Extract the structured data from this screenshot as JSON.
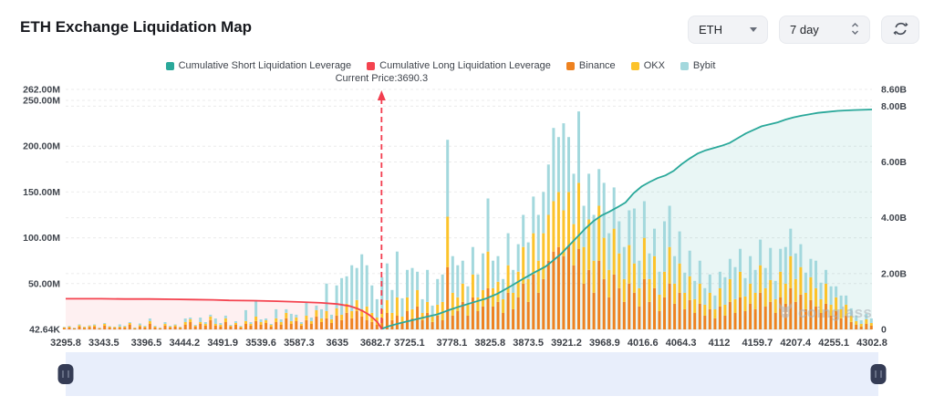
{
  "header": {
    "title": "ETH Exchange Liquidation Map"
  },
  "controls": {
    "symbol": "ETH",
    "period": "7 day",
    "icons": {
      "chevron_down": "caret-down",
      "stepper": "up-down-chevrons",
      "refresh": "circular-arrows"
    }
  },
  "watermark": {
    "text": "coinglass"
  },
  "slider": {
    "track_color": "#e8eefb",
    "handle_color": "#353c55",
    "grip_icon": "drag-grip"
  },
  "chart_data": {
    "type": "bar",
    "title": "ETH Exchange Liquidation Map",
    "subtitle": "",
    "grid": true,
    "legend_position": "top-center",
    "current_price": 3690.3,
    "current_price_label": "Current Price:3690.3",
    "x_axis": {
      "min": 3295.8,
      "max": 4302.8,
      "tick_labels": [
        "3295.8",
        "3343.5",
        "3396.5",
        "3444.2",
        "3491.9",
        "3539.6",
        "3587.3",
        "3635",
        "3682.7",
        "3725.1",
        "3778.1",
        "3825.8",
        "3873.5",
        "3921.2",
        "3968.9",
        "4016.6",
        "4064.3",
        "4112",
        "4159.7",
        "4207.4",
        "4255.1",
        "4302.8"
      ]
    },
    "left_axis": {
      "unit": "M",
      "max": 262,
      "min": 0.04264,
      "ticks": [
        {
          "label": "262.00M",
          "value": 262
        },
        {
          "label": "250.00M",
          "value": 250
        },
        {
          "label": "200.00M",
          "value": 200
        },
        {
          "label": "150.00M",
          "value": 150
        },
        {
          "label": "100.00M",
          "value": 100
        },
        {
          "label": "50.00M",
          "value": 50
        },
        {
          "label": "42.64K",
          "value": 0.04264
        }
      ]
    },
    "right_axis": {
      "unit": "B",
      "max": 8.6,
      "min": 0,
      "ticks": [
        {
          "label": "8.60B",
          "value": 8.6
        },
        {
          "label": "8.00B",
          "value": 8
        },
        {
          "label": "6.00B",
          "value": 6
        },
        {
          "label": "4.00B",
          "value": 4
        },
        {
          "label": "2.00B",
          "value": 2
        },
        {
          "label": "0",
          "value": 0
        }
      ]
    },
    "legend": [
      {
        "label": "Cumulative Short Liquidation Leverage",
        "color": "#2aa89a",
        "type": "line"
      },
      {
        "label": "Cumulative Long Liquidation Leverage",
        "color": "#f4434f",
        "type": "line"
      },
      {
        "label": "Binance",
        "color": "#ee8220",
        "type": "bar"
      },
      {
        "label": "OKX",
        "color": "#fcc32b",
        "type": "bar"
      },
      {
        "label": "Bybit",
        "color": "#a3d8dd",
        "type": "bar"
      }
    ],
    "price_line_color": "#f23d4e",
    "area_fill_short": "rgba(42,168,154,0.10)",
    "area_fill_long": "rgba(244,67,79,0.08)",
    "bars": {
      "unit": "M",
      "price_start": 3294,
      "price_step": 6.3,
      "series_order": [
        "Binance",
        "OKX",
        "Bybit"
      ],
      "values": [
        [
          1.5,
          0.8,
          0.5
        ],
        [
          2,
          1,
          0.8
        ],
        [
          1,
          0.5,
          0.4
        ],
        [
          3,
          1.5,
          1
        ],
        [
          1.5,
          1,
          0.5
        ],
        [
          2.5,
          1.2,
          0.8
        ],
        [
          3,
          1.5,
          1
        ],
        [
          1.2,
          0.6,
          0.4
        ],
        [
          4,
          2,
          1
        ],
        [
          2,
          1,
          0.6
        ],
        [
          1.5,
          1,
          0.5
        ],
        [
          2,
          1,
          2.5
        ],
        [
          2,
          1,
          1
        ],
        [
          5,
          2,
          1
        ],
        [
          1,
          0.8,
          0.4
        ],
        [
          3,
          1.5,
          2
        ],
        [
          2,
          1,
          1
        ],
        [
          6,
          3,
          3
        ],
        [
          2,
          1,
          1
        ],
        [
          1.2,
          0.6,
          0.4
        ],
        [
          4,
          2,
          2
        ],
        [
          2,
          1,
          1
        ],
        [
          3,
          1.5,
          1
        ],
        [
          1.5,
          1,
          0.5
        ],
        [
          5,
          3,
          4
        ],
        [
          8,
          3,
          2
        ],
        [
          3,
          1,
          1
        ],
        [
          6,
          2,
          5
        ],
        [
          4,
          2,
          2
        ],
        [
          10,
          4,
          2
        ],
        [
          4,
          2,
          6
        ],
        [
          3,
          2,
          2
        ],
        [
          8,
          4,
          3
        ],
        [
          3,
          1,
          1
        ],
        [
          5,
          2,
          2
        ],
        [
          2,
          1,
          1
        ],
        [
          6,
          3,
          12
        ],
        [
          4,
          2,
          2
        ],
        [
          9,
          5,
          18
        ],
        [
          5,
          3,
          3
        ],
        [
          7,
          3,
          2
        ],
        [
          3,
          2,
          1
        ],
        [
          8,
          4,
          10
        ],
        [
          5,
          3,
          3
        ],
        [
          12,
          6,
          4
        ],
        [
          6,
          3,
          8
        ],
        [
          9,
          4,
          3
        ],
        [
          4,
          2,
          2
        ],
        [
          10,
          5,
          15
        ],
        [
          6,
          3,
          4
        ],
        [
          14,
          7,
          5
        ],
        [
          8,
          4,
          10
        ],
        [
          12,
          8,
          30
        ],
        [
          7,
          4,
          5
        ],
        [
          15,
          8,
          25
        ],
        [
          10,
          6,
          40
        ],
        [
          18,
          10,
          30
        ],
        [
          12,
          8,
          50
        ],
        [
          20,
          12,
          35
        ],
        [
          14,
          8,
          60
        ],
        [
          10,
          15,
          45
        ],
        [
          8,
          10,
          30
        ],
        [
          5,
          8,
          20
        ],
        [
          12,
          10,
          35
        ],
        [
          18,
          14,
          40
        ],
        [
          10,
          8,
          25
        ],
        [
          15,
          20,
          50
        ],
        [
          8,
          6,
          20
        ],
        [
          20,
          15,
          30
        ],
        [
          12,
          10,
          45
        ],
        [
          25,
          18,
          20
        ],
        [
          10,
          8,
          15
        ],
        [
          18,
          12,
          35
        ],
        [
          8,
          6,
          12
        ],
        [
          15,
          12,
          28
        ],
        [
          10,
          20,
          30
        ],
        [
          68,
          55,
          84
        ],
        [
          15,
          25,
          40
        ],
        [
          20,
          15,
          35
        ],
        [
          30,
          20,
          25
        ],
        [
          15,
          12,
          20
        ],
        [
          35,
          25,
          30
        ],
        [
          20,
          15,
          25
        ],
        [
          25,
          18,
          40
        ],
        [
          45,
          40,
          58
        ],
        [
          25,
          20,
          30
        ],
        [
          30,
          22,
          28
        ],
        [
          18,
          15,
          22
        ],
        [
          40,
          30,
          35
        ],
        [
          22,
          18,
          25
        ],
        [
          35,
          28,
          30
        ],
        [
          50,
          40,
          35
        ],
        [
          30,
          25,
          40
        ],
        [
          60,
          45,
          40
        ],
        [
          40,
          35,
          50
        ],
        [
          55,
          50,
          45
        ],
        [
          75,
          50,
          55
        ],
        [
          85,
          55,
          80
        ],
        [
          90,
          60,
          60
        ],
        [
          80,
          50,
          95
        ],
        [
          92,
          58,
          60
        ],
        [
          70,
          45,
          55
        ],
        [
          88,
          72,
          78
        ],
        [
          50,
          40,
          45
        ],
        [
          65,
          55,
          50
        ],
        [
          40,
          35,
          50
        ],
        [
          75,
          60,
          40
        ],
        [
          55,
          45,
          60
        ],
        [
          35,
          30,
          40
        ],
        [
          60,
          50,
          45
        ],
        [
          45,
          38,
          35
        ],
        [
          30,
          25,
          35
        ],
        [
          50,
          42,
          38
        ],
        [
          40,
          32,
          60
        ],
        [
          25,
          20,
          30
        ],
        [
          55,
          45,
          40
        ],
        [
          30,
          25,
          28
        ],
        [
          45,
          35,
          30
        ],
        [
          20,
          18,
          25
        ],
        [
          35,
          28,
          55
        ],
        [
          50,
          40,
          45
        ],
        [
          28,
          22,
          30
        ],
        [
          40,
          32,
          35
        ],
        [
          22,
          18,
          22
        ],
        [
          32,
          26,
          28
        ],
        [
          18,
          15,
          20
        ],
        [
          28,
          22,
          25
        ],
        [
          15,
          12,
          18
        ],
        [
          22,
          18,
          20
        ],
        [
          12,
          10,
          15
        ],
        [
          25,
          20,
          18
        ],
        [
          15,
          12,
          30
        ],
        [
          30,
          25,
          22
        ],
        [
          18,
          15,
          35
        ],
        [
          35,
          28,
          25
        ],
        [
          20,
          16,
          20
        ],
        [
          28,
          22,
          30
        ],
        [
          22,
          18,
          25
        ],
        [
          40,
          30,
          28
        ],
        [
          25,
          20,
          22
        ],
        [
          30,
          24,
          35
        ],
        [
          18,
          15,
          20
        ],
        [
          35,
          28,
          25
        ],
        [
          28,
          22,
          40
        ],
        [
          45,
          35,
          30
        ],
        [
          30,
          25,
          28
        ],
        [
          38,
          30,
          25
        ],
        [
          22,
          18,
          22
        ],
        [
          32,
          25,
          20
        ],
        [
          25,
          20,
          30
        ],
        [
          18,
          15,
          18
        ],
        [
          28,
          22,
          15
        ],
        [
          15,
          12,
          20
        ],
        [
          20,
          15,
          12
        ],
        [
          12,
          10,
          15
        ],
        [
          15,
          12,
          10
        ],
        [
          8,
          7,
          8
        ],
        [
          5,
          4,
          6
        ],
        [
          3,
          3,
          4
        ],
        [
          6,
          5,
          6
        ],
        [
          4,
          3,
          5
        ]
      ]
    },
    "cumulative_long": {
      "unit": "B",
      "points": [
        [
          3295.8,
          1.1
        ],
        [
          3340,
          1.1
        ],
        [
          3370,
          1.09
        ],
        [
          3400,
          1.09
        ],
        [
          3430,
          1.08
        ],
        [
          3455,
          1.07
        ],
        [
          3480,
          1.06
        ],
        [
          3500,
          1.04
        ],
        [
          3530,
          1.03
        ],
        [
          3560,
          1.01
        ],
        [
          3590,
          0.98
        ],
        [
          3615,
          0.95
        ],
        [
          3635,
          0.91
        ],
        [
          3650,
          0.84
        ],
        [
          3660,
          0.75
        ],
        [
          3668,
          0.64
        ],
        [
          3675,
          0.52
        ],
        [
          3680,
          0.4
        ],
        [
          3685,
          0.26
        ],
        [
          3688,
          0.13
        ],
        [
          3690.3,
          0.02
        ]
      ]
    },
    "cumulative_short": {
      "unit": "B",
      "points": [
        [
          3690.3,
          0.02
        ],
        [
          3700,
          0.12
        ],
        [
          3715,
          0.24
        ],
        [
          3730,
          0.34
        ],
        [
          3745,
          0.44
        ],
        [
          3760,
          0.54
        ],
        [
          3775,
          0.7
        ],
        [
          3790,
          0.84
        ],
        [
          3805,
          0.97
        ],
        [
          3820,
          1.1
        ],
        [
          3835,
          1.28
        ],
        [
          3850,
          1.52
        ],
        [
          3865,
          1.78
        ],
        [
          3880,
          2.02
        ],
        [
          3895,
          2.25
        ],
        [
          3905,
          2.48
        ],
        [
          3915,
          2.72
        ],
        [
          3925,
          3.02
        ],
        [
          3935,
          3.32
        ],
        [
          3945,
          3.62
        ],
        [
          3955,
          3.88
        ],
        [
          3965,
          4.08
        ],
        [
          3975,
          4.22
        ],
        [
          3985,
          4.38
        ],
        [
          3995,
          4.55
        ],
        [
          4005,
          4.88
        ],
        [
          4015,
          5.12
        ],
        [
          4025,
          5.28
        ],
        [
          4035,
          5.42
        ],
        [
          4045,
          5.52
        ],
        [
          4055,
          5.68
        ],
        [
          4065,
          5.92
        ],
        [
          4075,
          6.12
        ],
        [
          4085,
          6.3
        ],
        [
          4095,
          6.42
        ],
        [
          4105,
          6.5
        ],
        [
          4115,
          6.58
        ],
        [
          4125,
          6.68
        ],
        [
          4135,
          6.85
        ],
        [
          4145,
          7.02
        ],
        [
          4155,
          7.15
        ],
        [
          4165,
          7.28
        ],
        [
          4175,
          7.35
        ],
        [
          4185,
          7.42
        ],
        [
          4195,
          7.52
        ],
        [
          4205,
          7.6
        ],
        [
          4215,
          7.66
        ],
        [
          4225,
          7.71
        ],
        [
          4235,
          7.76
        ],
        [
          4245,
          7.79
        ],
        [
          4260,
          7.83
        ],
        [
          4280,
          7.86
        ],
        [
          4302.8,
          7.88
        ]
      ]
    }
  }
}
